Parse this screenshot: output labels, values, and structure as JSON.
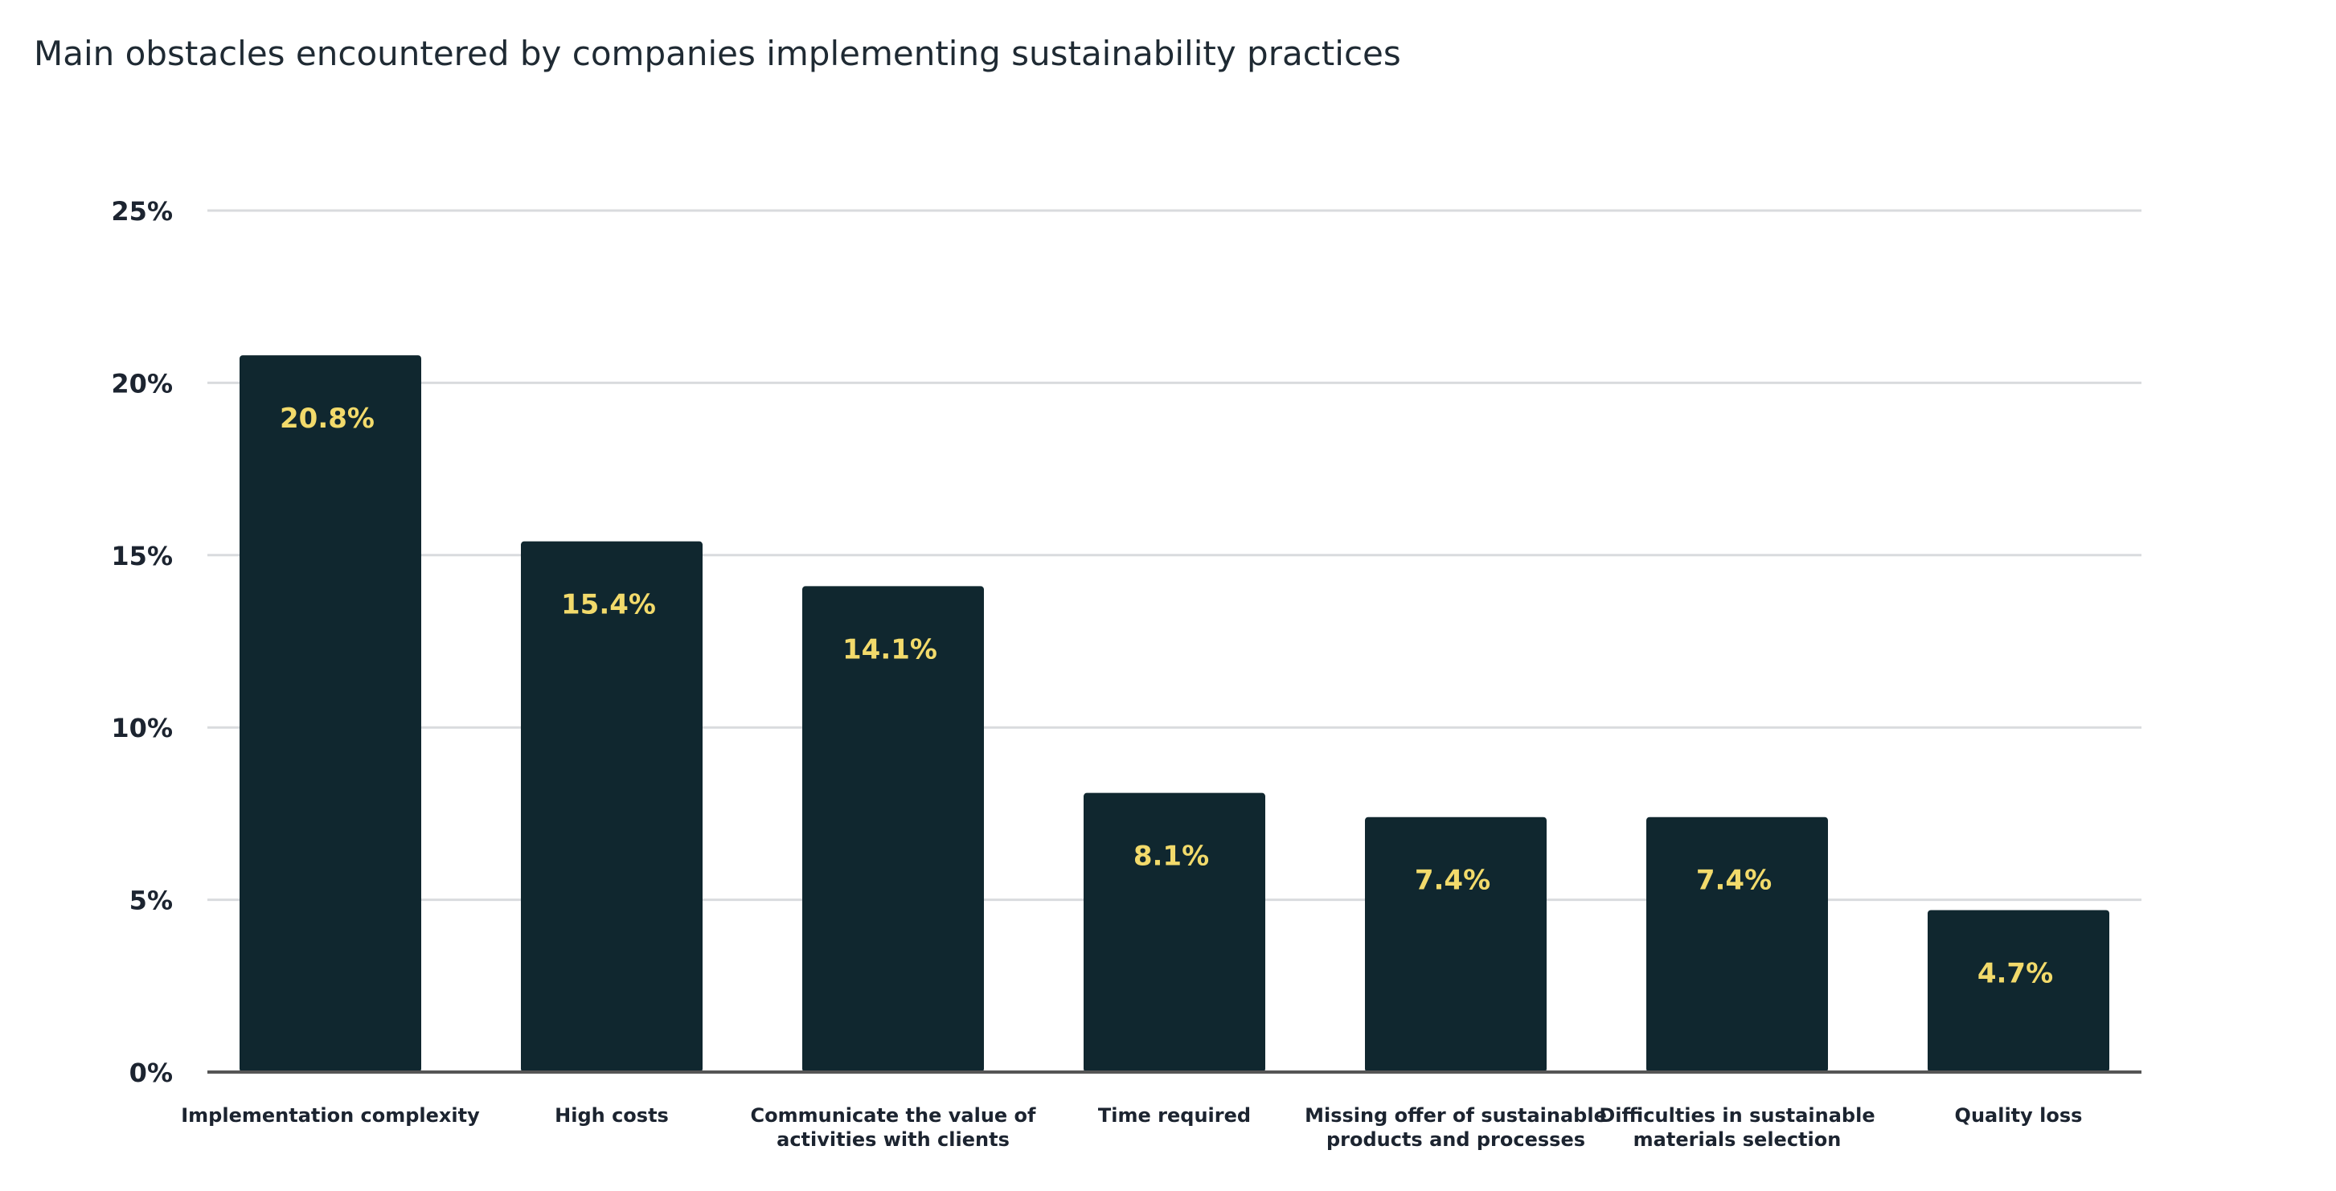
{
  "chart_data": {
    "type": "bar",
    "title": "Main obstacles encountered by companies implementing sustainability practices",
    "categories": [
      [
        "Implementation complexity"
      ],
      [
        "High costs"
      ],
      [
        "Communicate the value of",
        "activities with clients"
      ],
      [
        "Time required"
      ],
      [
        "Missing offer of sustainable",
        "products and processes"
      ],
      [
        "Difficulties in sustainable",
        "materials selection"
      ],
      [
        "Quality loss"
      ]
    ],
    "values": [
      20.8,
      15.4,
      14.1,
      8.1,
      7.4,
      7.4,
      4.7
    ],
    "value_labels": [
      "20.8%",
      "15.4%",
      "14.1%",
      "8.1%",
      "7.4%",
      "7.4%",
      "4.7%"
    ],
    "yticks": [
      0,
      5,
      10,
      15,
      20,
      25
    ],
    "ytick_labels": [
      "0%",
      "5%",
      "10%",
      "15%",
      "20%",
      "25%"
    ],
    "ylim": [
      0,
      25
    ],
    "xlabel": "",
    "ylabel": "",
    "grid": true,
    "colors": {
      "bar": "#10272f",
      "value_label": "#f2da6b",
      "grid": "#d9dbde",
      "axis": "#555555"
    }
  }
}
